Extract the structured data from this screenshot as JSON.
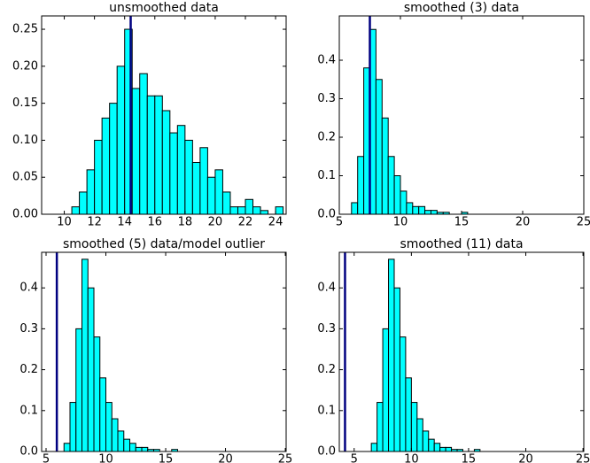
{
  "chart_data": [
    {
      "type": "histogram",
      "title": "unsmoothed data",
      "bins": [
        10,
        10.5,
        11,
        11.5,
        12,
        12.5,
        13,
        13.5,
        14,
        14.5,
        15,
        15.5,
        16,
        16.5,
        17,
        17.5,
        18,
        18.5,
        19,
        19.5,
        20,
        20.5,
        21,
        21.5,
        22,
        22.5,
        23,
        23.5,
        24,
        24.5
      ],
      "values": [
        0.0,
        0.01,
        0.03,
        0.06,
        0.1,
        0.13,
        0.15,
        0.2,
        0.25,
        0.17,
        0.19,
        0.16,
        0.16,
        0.14,
        0.11,
        0.12,
        0.1,
        0.07,
        0.09,
        0.05,
        0.06,
        0.03,
        0.01,
        0.01,
        0.02,
        0.01,
        0.005,
        0.0,
        0.01
      ],
      "color": "#00ffff",
      "edgecolor": "#000000",
      "vline": 14.4,
      "vline_color": "#000080",
      "xlim": [
        8.5,
        24.7
      ],
      "ylim": [
        0,
        0.268
      ],
      "xticks": [
        10,
        12,
        14,
        16,
        18,
        20,
        22,
        24
      ],
      "yticks": [
        {
          "value": 0,
          "label": "0.00"
        },
        {
          "value": 0.05,
          "label": "0.05"
        },
        {
          "value": 0.1,
          "label": "0.10"
        },
        {
          "value": 0.15,
          "label": "0.15"
        },
        {
          "value": 0.2,
          "label": "0.20"
        },
        {
          "value": 0.25,
          "label": "0.25"
        }
      ]
    },
    {
      "type": "histogram",
      "title": "smoothed (3) data",
      "bins": [
        6,
        6.5,
        7,
        7.5,
        8,
        8.5,
        9,
        9.5,
        10,
        10.5,
        11,
        11.5,
        12,
        12.5,
        13,
        13.5,
        14,
        14.5,
        15,
        15.5
      ],
      "values": [
        0.03,
        0.15,
        0.38,
        0.48,
        0.35,
        0.25,
        0.15,
        0.1,
        0.06,
        0.03,
        0.02,
        0.02,
        0.01,
        0.01,
        0.005,
        0.005,
        0,
        0,
        0.005
      ],
      "color": "#00ffff",
      "edgecolor": "#000000",
      "vline": 7.5,
      "vline_color": "#000080",
      "xlim": [
        5,
        25
      ],
      "ylim": [
        0,
        0.515
      ],
      "xticks": [
        5,
        10,
        15,
        20,
        25
      ],
      "yticks": [
        {
          "value": 0,
          "label": "0.0"
        },
        0.1,
        0.2,
        0.3,
        0.4
      ]
    },
    {
      "type": "histogram",
      "title": "smoothed (5) data/model outlier",
      "bins": [
        6.5,
        7,
        7.5,
        8,
        8.5,
        9,
        9.5,
        10,
        10.5,
        11,
        11.5,
        12,
        12.5,
        13,
        13.5,
        14,
        14.5,
        15,
        15.5,
        16
      ],
      "values": [
        0.02,
        0.12,
        0.3,
        0.47,
        0.4,
        0.28,
        0.18,
        0.12,
        0.08,
        0.05,
        0.03,
        0.02,
        0.01,
        0.01,
        0.005,
        0.005,
        0,
        0,
        0.005
      ],
      "color": "#00ffff",
      "edgecolor": "#000000",
      "vline": 5.9,
      "vline_color": "#000080",
      "xlim": [
        4.63,
        25.07
      ],
      "ylim": [
        0,
        0.487
      ],
      "xticks": [
        5,
        10,
        15,
        20,
        25
      ],
      "yticks": [
        {
          "value": 0,
          "label": "0.0"
        },
        0.1,
        0.2,
        0.3,
        0.4
      ]
    },
    {
      "type": "histogram",
      "title": "smoothed (11) data",
      "bins": [
        6.5,
        7,
        7.5,
        8,
        8.5,
        9,
        9.5,
        10,
        10.5,
        11,
        11.5,
        12,
        12.5,
        13,
        13.5,
        14,
        14.5,
        15,
        15.5,
        16
      ],
      "values": [
        0.02,
        0.12,
        0.3,
        0.47,
        0.4,
        0.28,
        0.18,
        0.12,
        0.08,
        0.05,
        0.03,
        0.02,
        0.01,
        0.01,
        0.005,
        0.005,
        0,
        0,
        0.005
      ],
      "color": "#00ffff",
      "edgecolor": "#000000",
      "vline": 4.2,
      "vline_color": "#000080",
      "xlim": [
        3.7,
        25.07
      ],
      "ylim": [
        0,
        0.487
      ],
      "xticks": [
        5,
        10,
        15,
        20,
        25
      ],
      "yticks": [
        {
          "value": 0,
          "label": "0.0"
        },
        0.1,
        0.2,
        0.3,
        0.4
      ]
    }
  ]
}
